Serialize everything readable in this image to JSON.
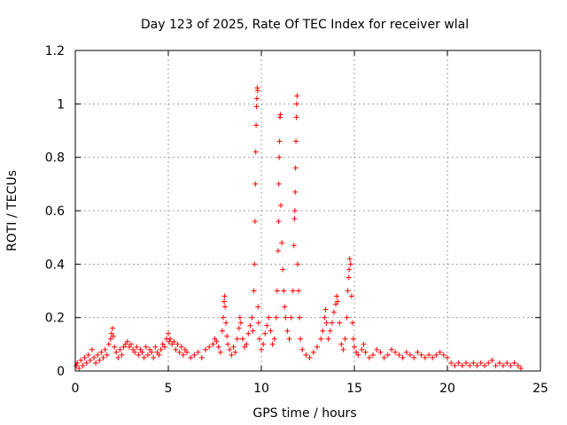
{
  "chart_data": {
    "type": "scatter",
    "title": "Day 123 of 2025, Rate Of TEC Index for receiver wlal",
    "xlabel": "GPS time / hours",
    "ylabel": "ROTI / TECUs",
    "xlim": [
      0,
      25
    ],
    "ylim": [
      0,
      1.2
    ],
    "xticks": [
      0,
      5,
      10,
      15,
      20,
      25
    ],
    "xtick_labels": [
      "0",
      "5",
      "10",
      "15",
      "20",
      "25"
    ],
    "yticks": [
      0,
      0.2,
      0.4,
      0.6,
      0.8,
      1.0,
      1.2
    ],
    "ytick_labels": [
      "0",
      "0.2",
      "0.4",
      "0.6",
      "0.8",
      "1",
      "1.2"
    ],
    "grid": true,
    "marker": "plus",
    "color": "#ff0000",
    "series": [
      {
        "name": "ROTI",
        "points": [
          [
            0.05,
            0.02
          ],
          [
            0.1,
            0.03
          ],
          [
            0.2,
            0.01
          ],
          [
            0.3,
            0.04
          ],
          [
            0.4,
            0.02
          ],
          [
            0.5,
            0.05
          ],
          [
            0.6,
            0.03
          ],
          [
            0.7,
            0.06
          ],
          [
            0.8,
            0.04
          ],
          [
            0.9,
            0.08
          ],
          [
            1.0,
            0.05
          ],
          [
            1.1,
            0.03
          ],
          [
            1.2,
            0.06
          ],
          [
            1.3,
            0.04
          ],
          [
            1.4,
            0.07
          ],
          [
            1.5,
            0.05
          ],
          [
            1.6,
            0.08
          ],
          [
            1.7,
            0.06
          ],
          [
            1.8,
            0.1
          ],
          [
            1.9,
            0.12
          ],
          [
            1.95,
            0.14
          ],
          [
            2.0,
            0.16
          ],
          [
            2.05,
            0.13
          ],
          [
            2.1,
            0.09
          ],
          [
            2.2,
            0.07
          ],
          [
            2.3,
            0.05
          ],
          [
            2.4,
            0.08
          ],
          [
            2.5,
            0.06
          ],
          [
            2.6,
            0.09
          ],
          [
            2.7,
            0.1
          ],
          [
            2.8,
            0.11
          ],
          [
            2.9,
            0.09
          ],
          [
            3.0,
            0.1
          ],
          [
            3.1,
            0.08
          ],
          [
            3.2,
            0.07
          ],
          [
            3.3,
            0.09
          ],
          [
            3.4,
            0.06
          ],
          [
            3.5,
            0.08
          ],
          [
            3.6,
            0.07
          ],
          [
            3.7,
            0.05
          ],
          [
            3.8,
            0.09
          ],
          [
            3.9,
            0.06
          ],
          [
            4.0,
            0.08
          ],
          [
            4.1,
            0.07
          ],
          [
            4.2,
            0.05
          ],
          [
            4.3,
            0.09
          ],
          [
            4.4,
            0.07
          ],
          [
            4.5,
            0.06
          ],
          [
            4.6,
            0.08
          ],
          [
            4.7,
            0.1
          ],
          [
            4.8,
            0.09
          ],
          [
            4.9,
            0.12
          ],
          [
            5.0,
            0.14
          ],
          [
            5.05,
            0.11
          ],
          [
            5.1,
            0.12
          ],
          [
            5.2,
            0.1
          ],
          [
            5.3,
            0.11
          ],
          [
            5.4,
            0.08
          ],
          [
            5.5,
            0.1
          ],
          [
            5.6,
            0.07
          ],
          [
            5.7,
            0.09
          ],
          [
            5.8,
            0.06
          ],
          [
            5.9,
            0.08
          ],
          [
            6.0,
            0.07
          ],
          [
            6.2,
            0.05
          ],
          [
            6.4,
            0.06
          ],
          [
            6.6,
            0.07
          ],
          [
            6.8,
            0.05
          ],
          [
            7.0,
            0.08
          ],
          [
            7.2,
            0.09
          ],
          [
            7.4,
            0.1
          ],
          [
            7.5,
            0.12
          ],
          [
            7.6,
            0.11
          ],
          [
            7.7,
            0.09
          ],
          [
            7.8,
            0.07
          ],
          [
            7.9,
            0.15
          ],
          [
            7.95,
            0.2
          ],
          [
            8.0,
            0.26
          ],
          [
            8.02,
            0.28
          ],
          [
            8.05,
            0.24
          ],
          [
            8.1,
            0.18
          ],
          [
            8.15,
            0.13
          ],
          [
            8.2,
            0.1
          ],
          [
            8.3,
            0.08
          ],
          [
            8.4,
            0.06
          ],
          [
            8.5,
            0.09
          ],
          [
            8.6,
            0.07
          ],
          [
            8.7,
            0.12
          ],
          [
            8.8,
            0.16
          ],
          [
            8.85,
            0.2
          ],
          [
            8.9,
            0.18
          ],
          [
            9.0,
            0.12
          ],
          [
            9.1,
            0.09
          ],
          [
            9.2,
            0.1
          ],
          [
            9.3,
            0.14
          ],
          [
            9.4,
            0.17
          ],
          [
            9.5,
            0.2
          ],
          [
            9.55,
            0.15
          ],
          [
            9.6,
            0.3
          ],
          [
            9.63,
            0.4
          ],
          [
            9.66,
            0.56
          ],
          [
            9.68,
            0.7
          ],
          [
            9.7,
            0.82
          ],
          [
            9.72,
            0.92
          ],
          [
            9.74,
            0.99
          ],
          [
            9.76,
            1.02
          ],
          [
            9.78,
            1.06
          ],
          [
            9.8,
            1.05
          ],
          [
            9.82,
            0.24
          ],
          [
            9.85,
            0.18
          ],
          [
            9.9,
            0.12
          ],
          [
            10.0,
            0.08
          ],
          [
            10.1,
            0.1
          ],
          [
            10.2,
            0.14
          ],
          [
            10.3,
            0.17
          ],
          [
            10.4,
            0.2
          ],
          [
            10.5,
            0.15
          ],
          [
            10.6,
            0.1
          ],
          [
            10.7,
            0.12
          ],
          [
            10.8,
            0.2
          ],
          [
            10.85,
            0.3
          ],
          [
            10.9,
            0.45
          ],
          [
            10.92,
            0.56
          ],
          [
            10.94,
            0.7
          ],
          [
            10.96,
            0.8
          ],
          [
            10.98,
            0.86
          ],
          [
            11.0,
            0.95
          ],
          [
            11.02,
            0.96
          ],
          [
            11.05,
            0.62
          ],
          [
            11.1,
            0.48
          ],
          [
            11.15,
            0.38
          ],
          [
            11.2,
            0.3
          ],
          [
            11.25,
            0.24
          ],
          [
            11.3,
            0.2
          ],
          [
            11.4,
            0.15
          ],
          [
            11.5,
            0.12
          ],
          [
            11.6,
            0.2
          ],
          [
            11.7,
            0.3
          ],
          [
            11.75,
            0.47
          ],
          [
            11.78,
            0.57
          ],
          [
            11.8,
            0.6
          ],
          [
            11.82,
            0.67
          ],
          [
            11.84,
            0.76
          ],
          [
            11.86,
            0.86
          ],
          [
            11.88,
            0.95
          ],
          [
            11.9,
            1.0
          ],
          [
            11.92,
            1.03
          ],
          [
            11.95,
            0.4
          ],
          [
            12.0,
            0.3
          ],
          [
            12.05,
            0.2
          ],
          [
            12.1,
            0.12
          ],
          [
            12.2,
            0.08
          ],
          [
            12.4,
            0.06
          ],
          [
            12.6,
            0.05
          ],
          [
            12.8,
            0.07
          ],
          [
            13.0,
            0.09
          ],
          [
            13.2,
            0.12
          ],
          [
            13.3,
            0.15
          ],
          [
            13.4,
            0.2
          ],
          [
            13.45,
            0.23
          ],
          [
            13.5,
            0.18
          ],
          [
            13.6,
            0.12
          ],
          [
            13.7,
            0.15
          ],
          [
            13.8,
            0.18
          ],
          [
            13.9,
            0.22
          ],
          [
            14.0,
            0.25
          ],
          [
            14.05,
            0.28
          ],
          [
            14.1,
            0.26
          ],
          [
            14.2,
            0.18
          ],
          [
            14.3,
            0.1
          ],
          [
            14.4,
            0.08
          ],
          [
            14.5,
            0.12
          ],
          [
            14.6,
            0.2
          ],
          [
            14.65,
            0.3
          ],
          [
            14.7,
            0.35
          ],
          [
            14.72,
            0.38
          ],
          [
            14.75,
            0.42
          ],
          [
            14.8,
            0.4
          ],
          [
            14.85,
            0.28
          ],
          [
            14.9,
            0.18
          ],
          [
            14.95,
            0.12
          ],
          [
            15.0,
            0.09
          ],
          [
            15.1,
            0.07
          ],
          [
            15.2,
            0.06
          ],
          [
            15.4,
            0.08
          ],
          [
            15.5,
            0.1
          ],
          [
            15.6,
            0.07
          ],
          [
            15.8,
            0.05
          ],
          [
            16.0,
            0.06
          ],
          [
            16.2,
            0.08
          ],
          [
            16.4,
            0.07
          ],
          [
            16.6,
            0.05
          ],
          [
            16.8,
            0.06
          ],
          [
            17.0,
            0.08
          ],
          [
            17.2,
            0.07
          ],
          [
            17.4,
            0.06
          ],
          [
            17.6,
            0.05
          ],
          [
            17.8,
            0.07
          ],
          [
            18.0,
            0.06
          ],
          [
            18.2,
            0.05
          ],
          [
            18.4,
            0.07
          ],
          [
            18.6,
            0.06
          ],
          [
            18.8,
            0.05
          ],
          [
            19.0,
            0.06
          ],
          [
            19.2,
            0.05
          ],
          [
            19.4,
            0.06
          ],
          [
            19.6,
            0.07
          ],
          [
            19.8,
            0.06
          ],
          [
            20.0,
            0.05
          ],
          [
            20.2,
            0.03
          ],
          [
            20.4,
            0.02
          ],
          [
            20.6,
            0.03
          ],
          [
            20.8,
            0.02
          ],
          [
            21.0,
            0.03
          ],
          [
            21.2,
            0.02
          ],
          [
            21.4,
            0.03
          ],
          [
            21.6,
            0.02
          ],
          [
            21.8,
            0.03
          ],
          [
            22.0,
            0.02
          ],
          [
            22.2,
            0.03
          ],
          [
            22.4,
            0.04
          ],
          [
            22.6,
            0.02
          ],
          [
            22.8,
            0.03
          ],
          [
            23.0,
            0.02
          ],
          [
            23.2,
            0.03
          ],
          [
            23.4,
            0.02
          ],
          [
            23.6,
            0.03
          ],
          [
            23.8,
            0.02
          ],
          [
            23.95,
            0.01
          ]
        ]
      }
    ]
  }
}
